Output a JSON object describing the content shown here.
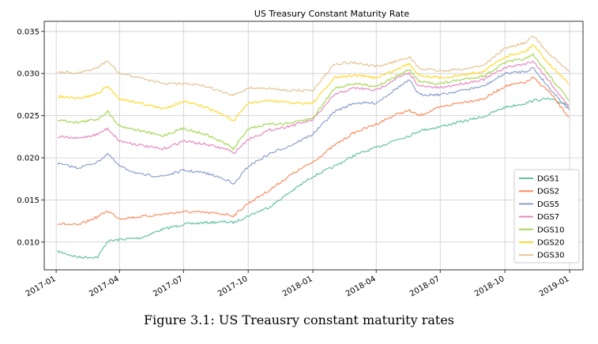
{
  "figure_caption": "Figure 3.1: US Treausry constant maturity rates",
  "chart_data": {
    "type": "line",
    "title": "US Treasury Constant Maturity Rate",
    "xlabel": "",
    "ylabel": "",
    "xlim": [
      "2016-12-15",
      "2019-01-20"
    ],
    "ylim": [
      0.0067,
      0.0362
    ],
    "x_ticks": [
      "2017-01",
      "2017-04",
      "2017-07",
      "2017-10",
      "2018-01",
      "2018-04",
      "2018-07",
      "2018-10",
      "2019-01"
    ],
    "y_ticks": [
      "0.010",
      "0.015",
      "0.020",
      "0.025",
      "0.030",
      "0.035"
    ],
    "grid": true,
    "legend_position": "lower-right",
    "x": [
      "2017-01-03",
      "2017-02-01",
      "2017-03-01",
      "2017-03-15",
      "2017-04-01",
      "2017-05-01",
      "2017-06-01",
      "2017-07-01",
      "2017-08-01",
      "2017-09-01",
      "2017-09-10",
      "2017-10-01",
      "2017-11-01",
      "2017-12-01",
      "2018-01-01",
      "2018-02-01",
      "2018-03-01",
      "2018-04-01",
      "2018-05-01",
      "2018-05-18",
      "2018-06-01",
      "2018-07-01",
      "2018-08-01",
      "2018-09-01",
      "2018-10-01",
      "2018-11-01",
      "2018-11-10",
      "2018-12-01",
      "2018-12-31"
    ],
    "series": [
      {
        "name": "DGS1",
        "color": "#66c2a5",
        "values": [
          0.0089,
          0.0082,
          0.0082,
          0.0101,
          0.0103,
          0.0105,
          0.0115,
          0.0121,
          0.0123,
          0.0124,
          0.0123,
          0.0131,
          0.0142,
          0.016,
          0.0178,
          0.019,
          0.0203,
          0.0212,
          0.0222,
          0.0226,
          0.0232,
          0.0237,
          0.0243,
          0.0249,
          0.026,
          0.0265,
          0.0268,
          0.027,
          0.0263
        ]
      },
      {
        "name": "DGS2",
        "color": "#fc8d62",
        "values": [
          0.0122,
          0.012,
          0.013,
          0.0137,
          0.0128,
          0.013,
          0.0133,
          0.0136,
          0.0135,
          0.0133,
          0.0131,
          0.0146,
          0.0162,
          0.018,
          0.0195,
          0.0215,
          0.023,
          0.024,
          0.0252,
          0.0256,
          0.025,
          0.026,
          0.0266,
          0.027,
          0.0285,
          0.029,
          0.0295,
          0.028,
          0.0248
        ]
      },
      {
        "name": "DGS5",
        "color": "#8da0cb",
        "values": [
          0.0193,
          0.0188,
          0.0195,
          0.0205,
          0.019,
          0.018,
          0.0178,
          0.0185,
          0.0182,
          0.0174,
          0.0168,
          0.019,
          0.0205,
          0.0215,
          0.0228,
          0.0255,
          0.0265,
          0.0265,
          0.0283,
          0.0292,
          0.0275,
          0.0275,
          0.028,
          0.0285,
          0.03,
          0.0303,
          0.0307,
          0.0285,
          0.0257
        ]
      },
      {
        "name": "DGS7",
        "color": "#e78ac3",
        "values": [
          0.0225,
          0.0223,
          0.0228,
          0.0235,
          0.022,
          0.0215,
          0.021,
          0.022,
          0.0216,
          0.021,
          0.0205,
          0.0222,
          0.0233,
          0.0238,
          0.0245,
          0.0275,
          0.0283,
          0.028,
          0.0295,
          0.03,
          0.0285,
          0.0283,
          0.0288,
          0.0293,
          0.0307,
          0.0312,
          0.0315,
          0.0293,
          0.026
        ]
      },
      {
        "name": "DGS10",
        "color": "#a6d854",
        "values": [
          0.0245,
          0.0242,
          0.0246,
          0.0255,
          0.0238,
          0.0232,
          0.0226,
          0.0235,
          0.0228,
          0.0216,
          0.021,
          0.0235,
          0.024,
          0.0241,
          0.0247,
          0.0283,
          0.0288,
          0.0285,
          0.0297,
          0.0305,
          0.029,
          0.0288,
          0.0293,
          0.0297,
          0.0313,
          0.0318,
          0.0322,
          0.03,
          0.0268
        ]
      },
      {
        "name": "DGS20",
        "color": "#ffd92f",
        "values": [
          0.0273,
          0.027,
          0.0276,
          0.0285,
          0.027,
          0.0265,
          0.0258,
          0.0267,
          0.026,
          0.0249,
          0.0243,
          0.0265,
          0.0268,
          0.0265,
          0.0265,
          0.0295,
          0.0298,
          0.0295,
          0.0305,
          0.0312,
          0.0298,
          0.0295,
          0.0298,
          0.0303,
          0.032,
          0.0327,
          0.0335,
          0.0313,
          0.0288
        ]
      },
      {
        "name": "DGS30",
        "color": "#e5c494",
        "values": [
          0.0302,
          0.03,
          0.0307,
          0.0315,
          0.03,
          0.0295,
          0.0288,
          0.0288,
          0.0285,
          0.0276,
          0.0274,
          0.0283,
          0.0282,
          0.028,
          0.028,
          0.0312,
          0.0313,
          0.0308,
          0.0315,
          0.032,
          0.0306,
          0.0303,
          0.0305,
          0.031,
          0.033,
          0.0337,
          0.0345,
          0.0325,
          0.0302
        ]
      }
    ]
  }
}
